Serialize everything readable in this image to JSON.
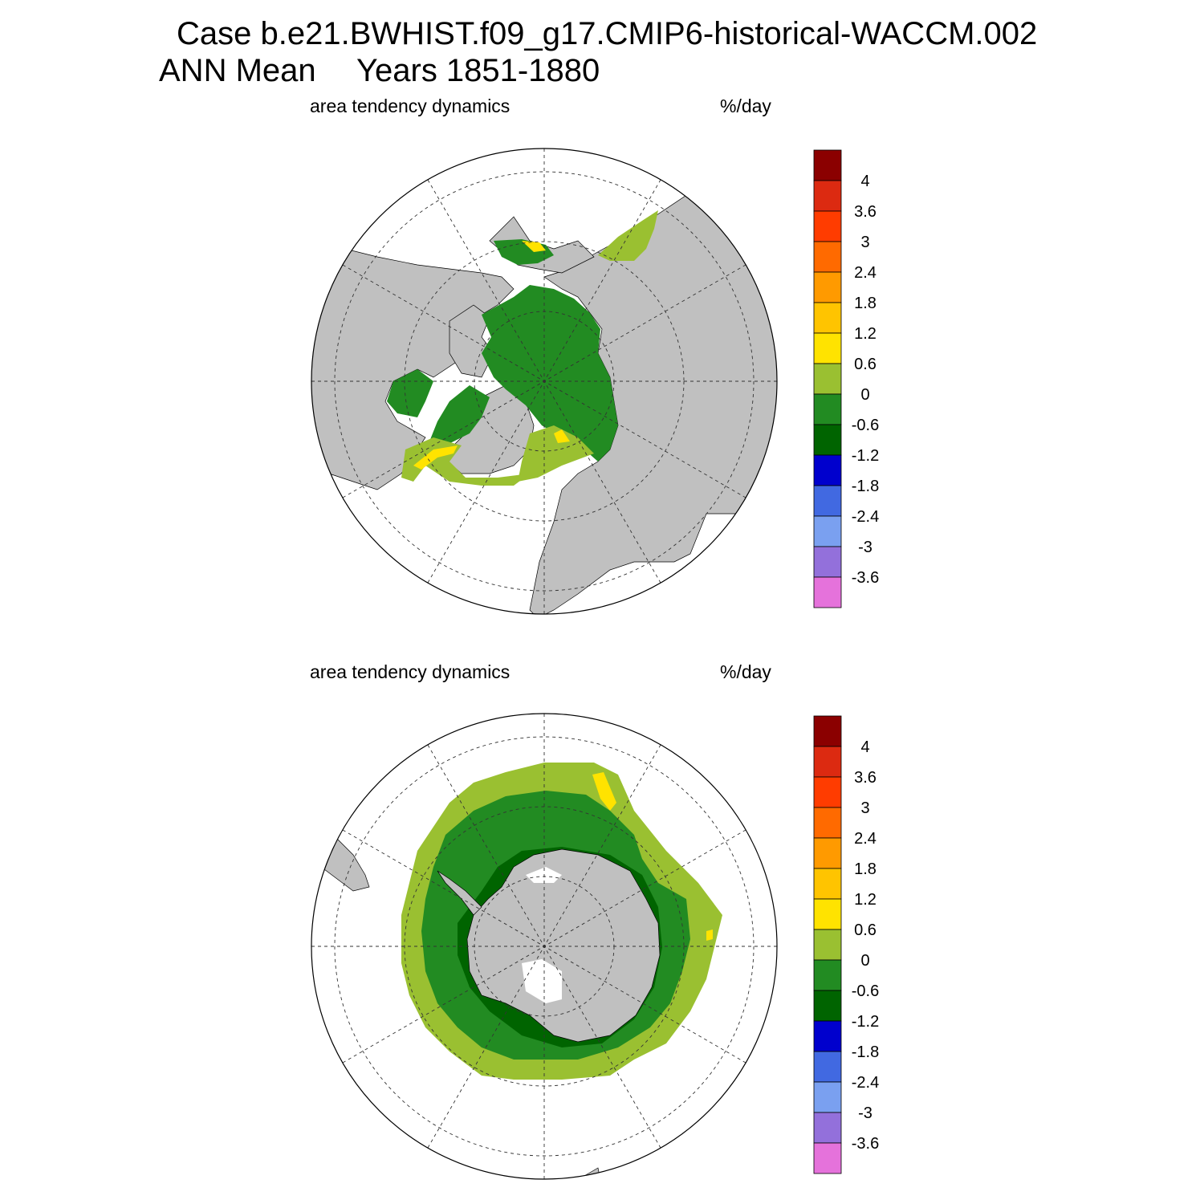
{
  "header": {
    "case_line": "Case b.e21.BWHIST.f09_g17.CMIP6-historical-WACCM.002",
    "season": "ANN Mean",
    "years": "Years 1851-1880"
  },
  "panels": [
    {
      "id": "north",
      "left_title": "area tendency dynamics",
      "units": "%/day"
    },
    {
      "id": "south",
      "left_title": "area tendency dynamics",
      "units": "%/day"
    }
  ],
  "colorbar": {
    "labels": [
      "4",
      "3.6",
      "3",
      "2.4",
      "1.8",
      "1.2",
      "0.6",
      "0",
      "-0.6",
      "-1.2",
      "-1.8",
      "-2.4",
      "-3",
      "-3.6"
    ],
    "colors": [
      "#8b0000",
      "#dc2a11",
      "#ff3c00",
      "#ff6a00",
      "#ff9a00",
      "#ffc400",
      "#ffe300",
      "#9ac031",
      "#228b22",
      "#006400",
      "#0000cd",
      "#4169e1",
      "#7aa0f0",
      "#9370db",
      "#e572db"
    ]
  },
  "colors": {
    "land": "#c0c0c0",
    "coast": "#000000",
    "ocean": "#ffffff"
  }
}
